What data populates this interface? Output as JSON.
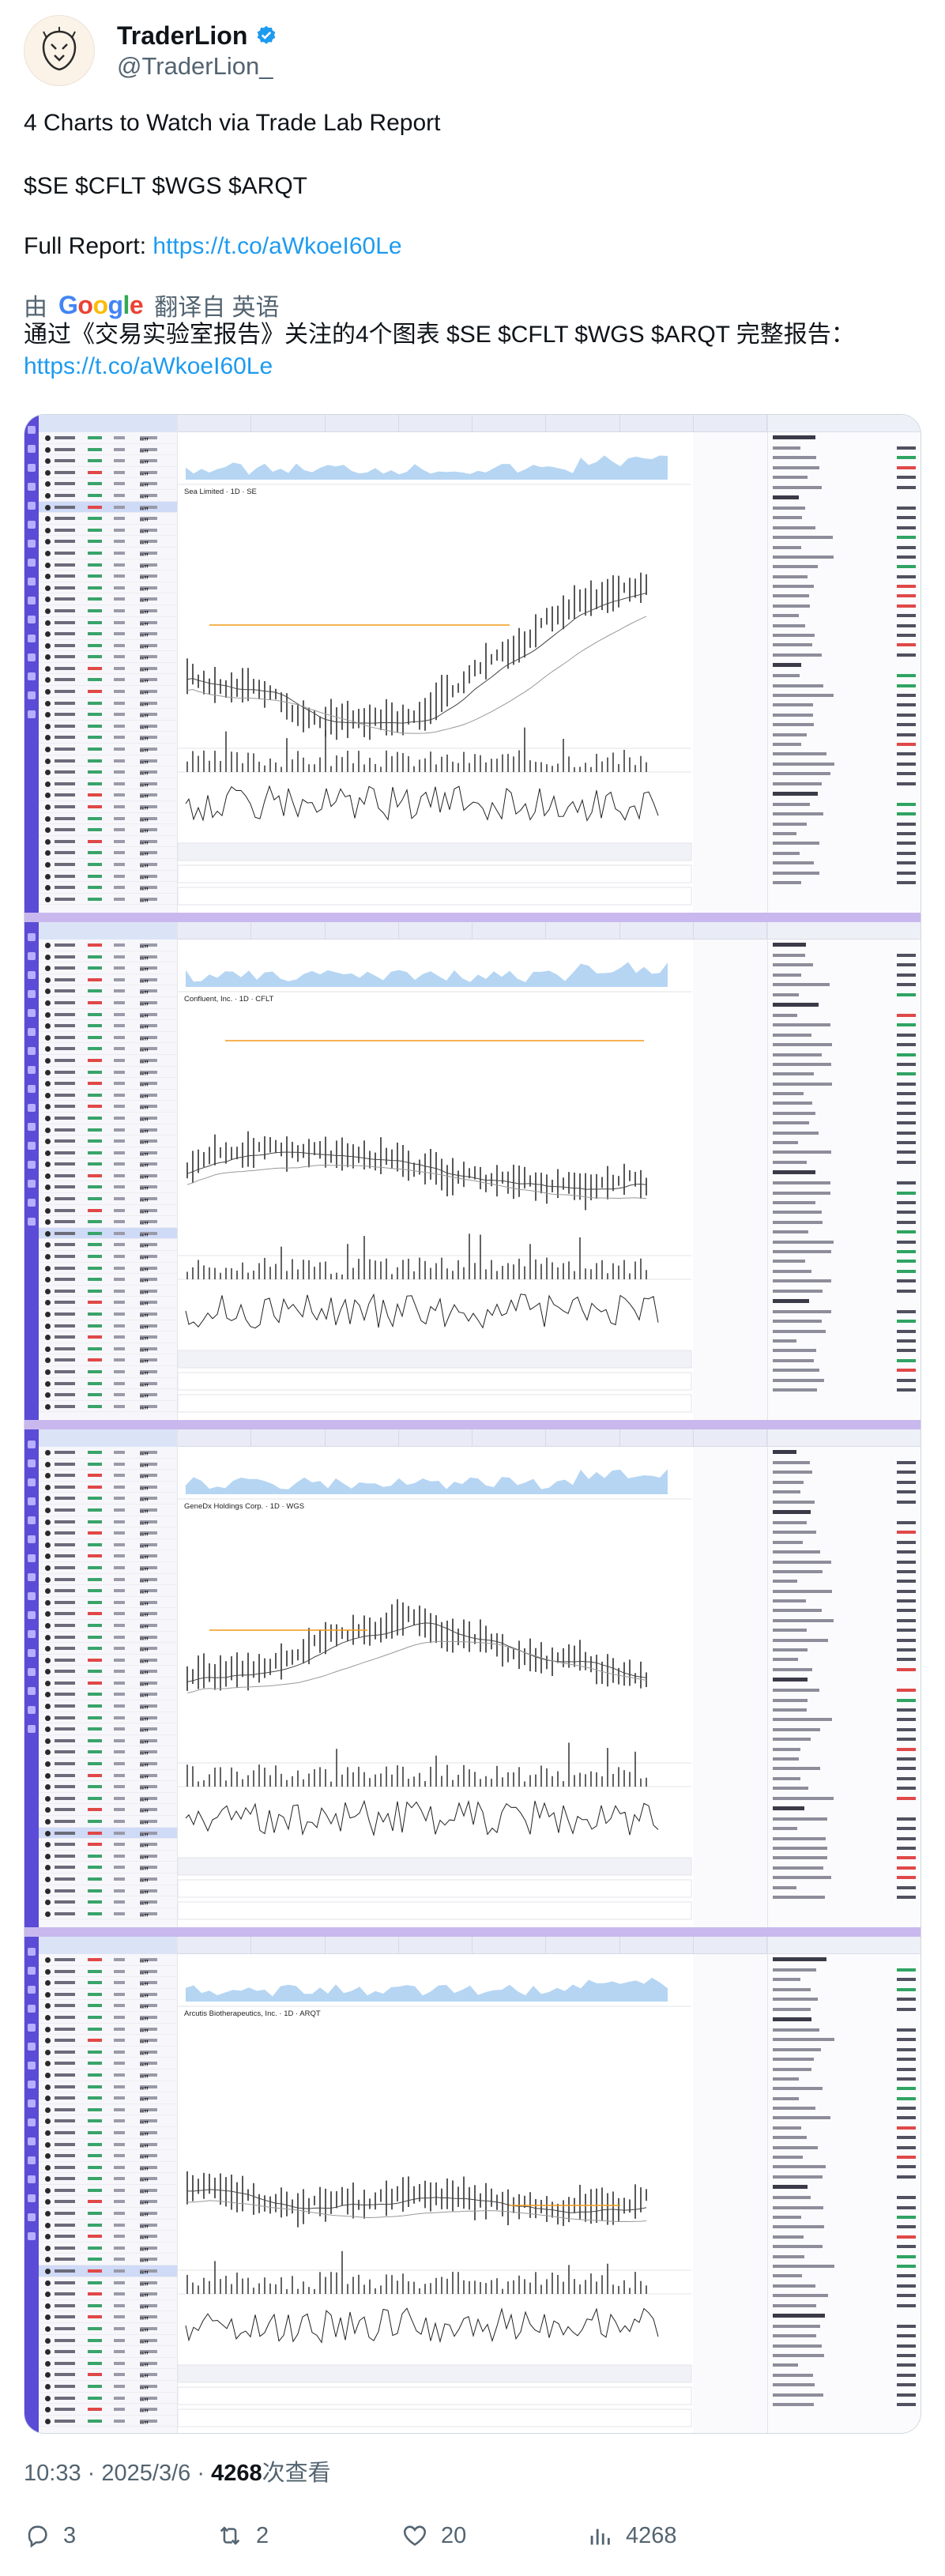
{
  "author": {
    "display_name": "TraderLion",
    "handle": "@TraderLion_",
    "verified": true,
    "avatar_icon": "lion-logo-icon"
  },
  "tweet": {
    "line1": "4 Charts to Watch via Trade Lab Report",
    "line2": "$SE $CFLT $WGS $ARQT",
    "line3_prefix": "Full Report: ",
    "line3_link": "https://t.co/aWkoeI60Le"
  },
  "translation": {
    "by": "由",
    "provider": "Google",
    "translated_from": "翻译自 英语",
    "text": "通过《交易实验室报告》关注的4个图表 $SE $CFLT $WGS $ARQT 完整报告：",
    "link": "https://t.co/aWkoeI60Le"
  },
  "media": {
    "accent_color": "#5b4bd6",
    "panels": [
      {
        "chart_title": "Sea Limited · 1D · SE"
      },
      {
        "chart_title": "Confluent, Inc. · 1D · CFLT"
      },
      {
        "chart_title": "GeneDx Holdings Corp. · 1D · WGS"
      },
      {
        "chart_title": "Arcutis Biotherapeutics, Inc. · 1D · ARQT"
      }
    ]
  },
  "footer": {
    "time": "10:33",
    "sep": "·",
    "date": "2025/3/6",
    "views_count": "4268",
    "views_label": "次查看"
  },
  "actions": {
    "replies": "3",
    "retweets": "2",
    "likes": "20",
    "views": "4268"
  },
  "colors": {
    "link": "#1d9bf0",
    "muted_text": "#536471",
    "verified_badge": "#1d9bf0"
  }
}
